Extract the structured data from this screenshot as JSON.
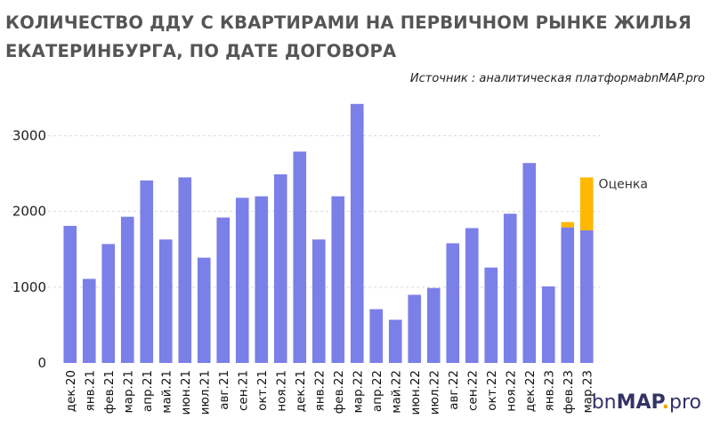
{
  "header": {
    "title_line1": "КОЛИЧЕСТВО ДДУ С КВАРТИРАМИ НА ПЕРВИЧНОМ РЫНКЕ ЖИЛЬЯ",
    "title_line2": "ЕКАТЕРИНБУРГА, ПО ДАТЕ ДОГОВОРА",
    "source": "Источник : аналитическая платформаbnMAP.pro"
  },
  "logo": {
    "part1": "bn",
    "part2": "MAP",
    "part3": ".",
    "part4": "pro"
  },
  "chart_data": {
    "type": "bar",
    "stacked": true,
    "categories": [
      "дек.20",
      "янв.21",
      "фев.21",
      "мар.21",
      "апр.21",
      "май.21",
      "июн.21",
      "июл.21",
      "авг.21",
      "сен.21",
      "окт.21",
      "ноя.21",
      "дек.21",
      "янв.22",
      "фев.22",
      "мар.22",
      "апр.22",
      "май.22",
      "июн.22",
      "июл.22",
      "авг.22",
      "сен.22",
      "окт.22",
      "ноя.22",
      "дек.22",
      "янв.23",
      "фев.23",
      "мар.23"
    ],
    "series": [
      {
        "color": "#7b7fe8",
        "values": [
          1810,
          1110,
          1570,
          1930,
          2410,
          1630,
          2450,
          1390,
          1920,
          2180,
          2200,
          2490,
          2790,
          1630,
          2200,
          3420,
          710,
          570,
          900,
          990,
          1580,
          1780,
          1260,
          1970,
          2640,
          1010,
          1790,
          1750
        ]
      },
      {
        "name": "Оценка",
        "color": "#ffb800",
        "values": [
          0,
          0,
          0,
          0,
          0,
          0,
          0,
          0,
          0,
          0,
          0,
          0,
          0,
          0,
          0,
          0,
          0,
          0,
          0,
          0,
          0,
          0,
          0,
          0,
          0,
          0,
          70,
          700
        ]
      }
    ],
    "annotation": "Оценка",
    "yticks": [
      0,
      1000,
      2000,
      3000
    ],
    "ylim": [
      0,
      3500
    ],
    "xlabel": "",
    "ylabel": "",
    "grid": "horizontal-dashed",
    "grid_color": "#d9d9d9"
  }
}
